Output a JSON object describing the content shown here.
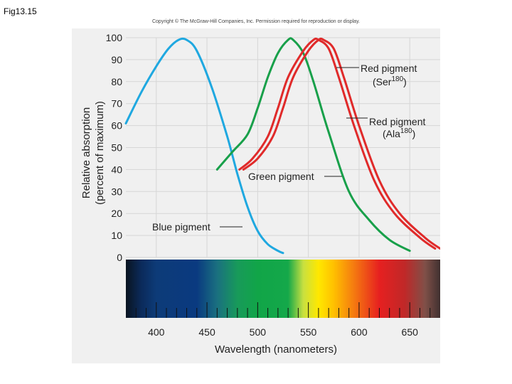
{
  "figure_label": "Fig13.15",
  "copyright": "Copyright © The McGraw-Hill Companies, Inc. Permission required for reproduction or display.",
  "chart_data": {
    "type": "line",
    "title": "",
    "xlabel": "Wavelength (nanometers)",
    "ylabel_line1": "Relative absorption",
    "ylabel_line2": "(percent of maximum)",
    "xlim": [
      370,
      680
    ],
    "ylim": [
      0,
      100
    ],
    "x_ticks": [
      "400",
      "450",
      "500",
      "550",
      "600",
      "650"
    ],
    "y_ticks": [
      "0",
      "10",
      "20",
      "30",
      "40",
      "50",
      "60",
      "70",
      "80",
      "90",
      "100"
    ],
    "grid": true,
    "colors": {
      "blue": "#1fa8e0",
      "green": "#18a04a",
      "red": "#e02a2a",
      "grid": "#d6d6d6"
    },
    "series": [
      {
        "name": "Blue pigment",
        "label_text": "Blue pigment",
        "x": [
          370,
          385,
          400,
          412,
          422,
          430,
          440,
          455,
          470,
          480,
          490,
          500,
          510,
          520,
          525
        ],
        "y": [
          61,
          75,
          87,
          95,
          99,
          99,
          94,
          77,
          55,
          38,
          23,
          12,
          6,
          3,
          2
        ]
      },
      {
        "name": "Green pigment",
        "label_text": "Green pigment",
        "x": [
          460,
          475,
          490,
          500,
          510,
          520,
          530,
          535,
          545,
          555,
          570,
          590,
          610,
          630,
          650
        ],
        "y": [
          40,
          48,
          56,
          68,
          82,
          93,
          99,
          99,
          93,
          80,
          57,
          30,
          17,
          8,
          3
        ]
      },
      {
        "name": "Red pigment (Ser180)",
        "label_text": "Red pigment",
        "label_sub_base": "(Ser",
        "label_sup": "180",
        "label_sub_end": ")",
        "x": [
          482,
          495,
          510,
          520,
          530,
          545,
          555,
          560,
          570,
          580,
          595,
          615,
          635,
          660,
          675
        ],
        "y": [
          40,
          45,
          55,
          68,
          82,
          94,
          99,
          99,
          95,
          82,
          60,
          35,
          20,
          9,
          4
        ]
      },
      {
        "name": "Red pigment (Ala180)",
        "label_text": "Red pigment",
        "label_sub_base": "(Ala",
        "label_sup": "180",
        "label_sub_end": ")",
        "x": [
          486,
          500,
          515,
          525,
          535,
          550,
          560,
          565,
          575,
          585,
          600,
          620,
          640,
          665,
          680
        ],
        "y": [
          40,
          45,
          55,
          68,
          82,
          94,
          99,
          99,
          95,
          82,
          60,
          35,
          20,
          9,
          4
        ]
      }
    ],
    "spectrum_stops": [
      {
        "nm": 370,
        "color": "#0a1420"
      },
      {
        "nm": 385,
        "color": "#0b2a5a"
      },
      {
        "nm": 400,
        "color": "#0d3b78"
      },
      {
        "nm": 440,
        "color": "#0a3a80"
      },
      {
        "nm": 460,
        "color": "#1a7080"
      },
      {
        "nm": 480,
        "color": "#189a5a"
      },
      {
        "nm": 500,
        "color": "#11a548"
      },
      {
        "nm": 530,
        "color": "#14a84a"
      },
      {
        "nm": 545,
        "color": "#c8e040"
      },
      {
        "nm": 560,
        "color": "#ffe800"
      },
      {
        "nm": 575,
        "color": "#ffc000"
      },
      {
        "nm": 595,
        "color": "#f57a10"
      },
      {
        "nm": 620,
        "color": "#e62020"
      },
      {
        "nm": 645,
        "color": "#c02828"
      },
      {
        "nm": 665,
        "color": "#805048"
      },
      {
        "nm": 680,
        "color": "#403030"
      }
    ]
  }
}
